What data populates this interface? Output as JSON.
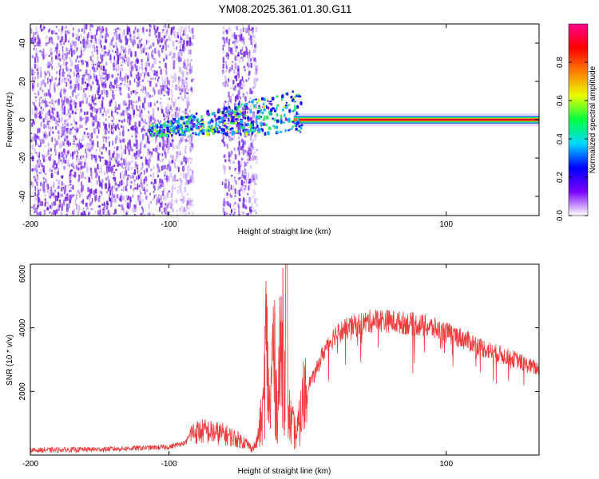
{
  "title": "YM08.2025.361.01.30.G11",
  "colors": {
    "snr_line": "#f03c3c",
    "spec_dots": "#7a2cf0",
    "spec_light": "#c7a4f7",
    "frame": "#000000"
  },
  "chart_data": [
    {
      "type": "heatmap",
      "name": "spectrogram",
      "xlabel": "Height of straight line (km)",
      "ylabel": "Frequency (Hz)",
      "xlim": [
        -200,
        167
      ],
      "ylim": [
        -50,
        50
      ],
      "x_ticks": [
        -200,
        -100,
        100
      ],
      "y_ticks": [
        -40,
        -20,
        0,
        20,
        40
      ],
      "colorbar": {
        "label": "Normalized spectral amplitude",
        "range": [
          0,
          1
        ],
        "ticks": [
          "0.0",
          "0.2",
          "0.4",
          "0.6",
          "0.8"
        ],
        "stops": [
          "#ffffff",
          "#7a00ff",
          "#0000ff",
          "#00d8ff",
          "#00ff40",
          "#e8ff00",
          "#ff8000",
          "#ff0000",
          "#ff0090"
        ]
      },
      "features": {
        "noise_bands_km": [
          [
            -200,
            -83
          ],
          [
            -62,
            -37
          ]
        ],
        "signal_line": {
          "x_range": [
            -115,
            167
          ],
          "freq_hz": 0,
          "strong_from_km": -10
        }
      }
    },
    {
      "type": "line",
      "name": "snr",
      "xlabel": "Height of straight line (km)",
      "ylabel": "SNR (10 * v/v)",
      "xlim": [
        -200,
        167
      ],
      "ylim": [
        0,
        6000
      ],
      "x_ticks": [
        -200,
        -100,
        100
      ],
      "y_ticks": [
        2000,
        4000,
        6000
      ],
      "series": [
        {
          "name": "SNR",
          "x": [
            -200,
            -150,
            -100,
            -88,
            -84,
            -75,
            -60,
            -45,
            -40,
            -37,
            -32,
            -30,
            -27,
            -25,
            -22,
            -18,
            -15,
            -12,
            -8,
            -5,
            -2,
            0,
            5,
            10,
            15,
            20,
            30,
            40,
            50,
            60,
            70,
            80,
            90,
            100,
            110,
            120,
            130,
            140,
            150,
            160,
            167
          ],
          "y": [
            150,
            180,
            250,
            400,
            700,
            750,
            650,
            400,
            200,
            350,
            1300,
            3600,
            1200,
            3500,
            1500,
            4000,
            1600,
            1000,
            600,
            1200,
            2000,
            2200,
            2500,
            3100,
            3500,
            3800,
            4000,
            4150,
            4250,
            4200,
            4150,
            4100,
            4000,
            3850,
            3700,
            3500,
            3300,
            3150,
            3000,
            2800,
            2700
          ]
        }
      ]
    }
  ]
}
